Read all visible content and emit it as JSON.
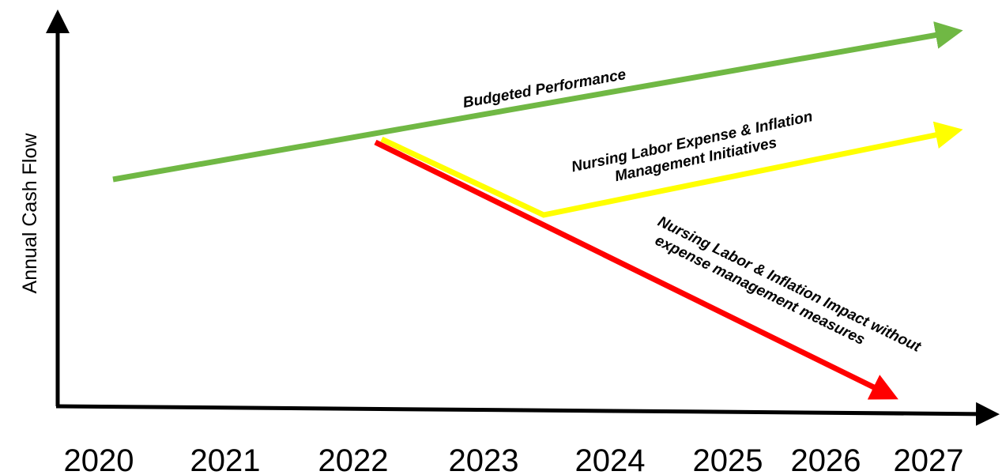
{
  "axes": {
    "y_label": "Annual Cash Flow",
    "x_labels": [
      "2020",
      "2021",
      "2022",
      "2023",
      "2024",
      "2025",
      "2026",
      "2027"
    ]
  },
  "arrows": [
    {
      "label": [
        "Budgeted Performance"
      ]
    },
    {
      "label": [
        "Nursing Labor Expense & Inflation",
        "Management Initiatives"
      ]
    },
    {
      "label": [
        "Nursing Labor & Inflation Impact without",
        "expense management measures"
      ]
    }
  ]
}
